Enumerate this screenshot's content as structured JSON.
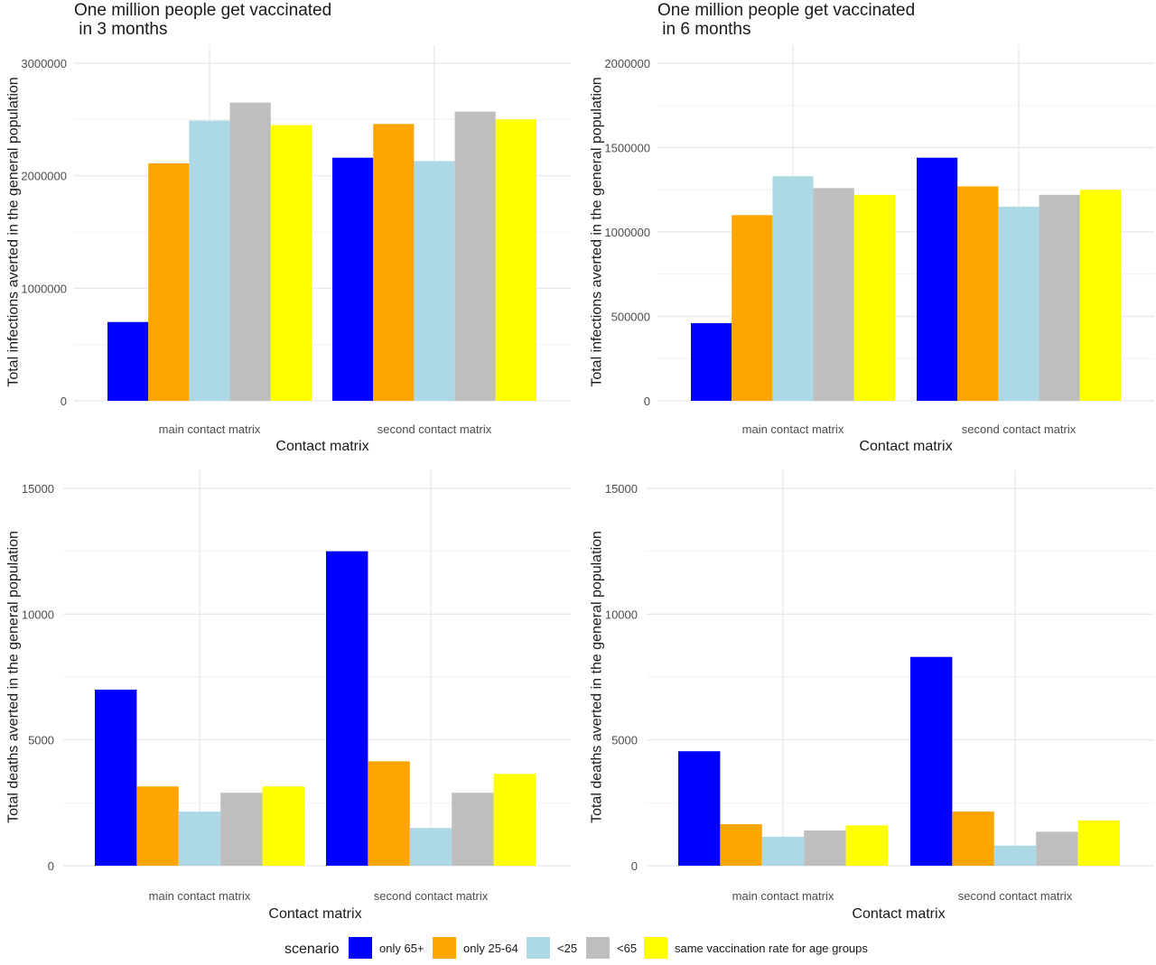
{
  "colors": {
    "only 65+": "#0000ff",
    "only 25-64": "#ffa500",
    "<25": "#add8e6",
    "<65": "#bebebe",
    "same vaccination rate for age groups": "#ffff00"
  },
  "legend": {
    "title": "scenario",
    "entries": [
      "only 65+",
      "only 25-64",
      "<25",
      "<65",
      "same vaccination rate for age groups"
    ]
  },
  "chart_data": [
    {
      "type": "bar",
      "title_lines": [
        "One million people get vaccinated",
        " in 3 months"
      ],
      "xlabel": "Contact matrix",
      "ylabel": "Total infections averted in the general population",
      "categories": [
        "main contact matrix",
        "second contact matrix"
      ],
      "ylim": [
        0,
        3000000
      ],
      "yticks": [
        "0",
        "1000000",
        "2000000",
        "3000000"
      ],
      "grid": true,
      "series": [
        {
          "name": "only 65+",
          "values": [
            700000,
            2160000
          ]
        },
        {
          "name": "only 25-64",
          "values": [
            2110000,
            2460000
          ]
        },
        {
          "name": "<25",
          "values": [
            2490000,
            2130000
          ]
        },
        {
          "name": "<65",
          "values": [
            2650000,
            2570000
          ]
        },
        {
          "name": "same vaccination rate for age groups",
          "values": [
            2450000,
            2500000
          ]
        }
      ]
    },
    {
      "type": "bar",
      "title_lines": [
        "One million people get vaccinated",
        " in 6 months"
      ],
      "xlabel": "Contact matrix",
      "ylabel": "Total infections averted in the general population",
      "categories": [
        "main contact matrix",
        "second contact matrix"
      ],
      "ylim": [
        0,
        2000000
      ],
      "yticks": [
        "0",
        "500000",
        "1000000",
        "1500000",
        "2000000"
      ],
      "grid": true,
      "series": [
        {
          "name": "only 65+",
          "values": [
            460000,
            1440000
          ]
        },
        {
          "name": "only 25-64",
          "values": [
            1100000,
            1270000
          ]
        },
        {
          "name": "<25",
          "values": [
            1330000,
            1150000
          ]
        },
        {
          "name": "<65",
          "values": [
            1260000,
            1220000
          ]
        },
        {
          "name": "same vaccination rate for age groups",
          "values": [
            1220000,
            1250000
          ]
        }
      ]
    },
    {
      "type": "bar",
      "title_lines": [],
      "xlabel": "Contact matrix",
      "ylabel": "Total deaths averted in the general population",
      "categories": [
        "main contact matrix",
        "second contact matrix"
      ],
      "ylim": [
        0,
        15000
      ],
      "yticks": [
        "0",
        "5000",
        "10000",
        "15000"
      ],
      "grid": true,
      "series": [
        {
          "name": "only 65+",
          "values": [
            7000,
            12500
          ]
        },
        {
          "name": "only 25-64",
          "values": [
            3150,
            4150
          ]
        },
        {
          "name": "<25",
          "values": [
            2150,
            1500
          ]
        },
        {
          "name": "<65",
          "values": [
            2900,
            2900
          ]
        },
        {
          "name": "same vaccination rate for age groups",
          "values": [
            3150,
            3650
          ]
        }
      ]
    },
    {
      "type": "bar",
      "title_lines": [],
      "xlabel": "Contact matrix",
      "ylabel": "Total deaths averted in the general population",
      "categories": [
        "main contact matrix",
        "second contact matrix"
      ],
      "ylim": [
        0,
        15000
      ],
      "yticks": [
        "0",
        "5000",
        "10000",
        "15000"
      ],
      "grid": true,
      "series": [
        {
          "name": "only 65+",
          "values": [
            4550,
            8300
          ]
        },
        {
          "name": "only 25-64",
          "values": [
            1650,
            2150
          ]
        },
        {
          "name": "<25",
          "values": [
            1150,
            800
          ]
        },
        {
          "name": "<65",
          "values": [
            1400,
            1350
          ]
        },
        {
          "name": "same vaccination rate for age groups",
          "values": [
            1600,
            1800
          ]
        }
      ]
    }
  ]
}
